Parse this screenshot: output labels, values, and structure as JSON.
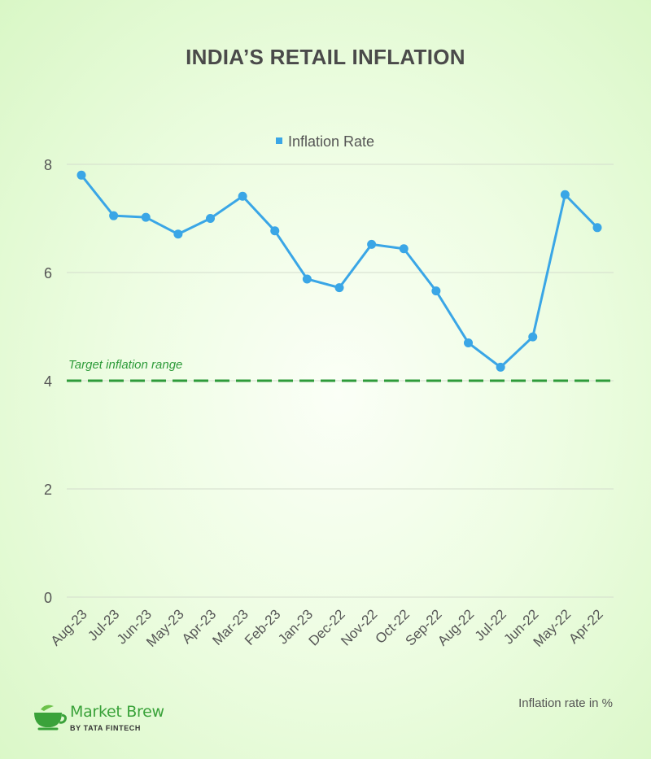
{
  "colors": {
    "line": "#3aa6e6",
    "target": "#2e9b3a",
    "grid": "#d4dccd",
    "text": "#4a4a4a",
    "brand": "#3aa23a"
  },
  "chart_data": {
    "type": "line",
    "title": "INDIA’S RETAIL INFLATION",
    "categories": [
      "Aug-23",
      "Jul-23",
      "Jun-23",
      "May-23",
      "Apr-23",
      "Mar-23",
      "Feb-23",
      "Jan-23",
      "Dec-22",
      "Nov-22",
      "Oct-22",
      "Sep-22",
      "Aug-22",
      "Jul-22",
      "Jun-22",
      "May-22",
      "Apr-22"
    ],
    "series": [
      {
        "name": "Inflation Rate",
        "values": [
          7.8,
          7.05,
          7.02,
          6.71,
          7.0,
          7.41,
          6.77,
          5.88,
          5.72,
          6.52,
          6.44,
          5.66,
          4.7,
          4.25,
          4.81,
          7.44,
          6.83
        ]
      }
    ],
    "ylim": [
      0,
      8
    ],
    "yticks": [
      0,
      2,
      4,
      6,
      8
    ],
    "grid": true,
    "legend": "top-center",
    "target_line": {
      "value": 4,
      "label": "Target inflation range"
    },
    "note": "Inflation rate in %"
  },
  "branding": {
    "logo_icon": "teacup-icon",
    "name": "Market Brew",
    "sub": "BY TATA FINTECH"
  }
}
